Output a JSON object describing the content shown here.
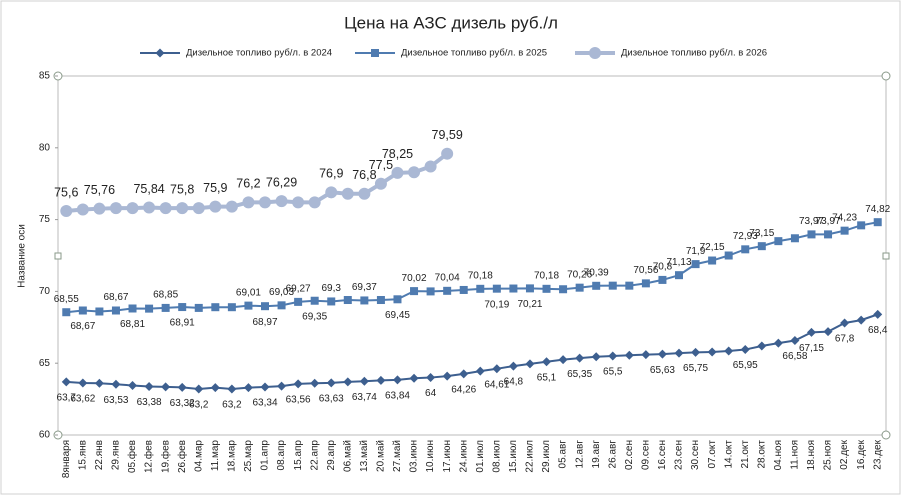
{
  "chart_data": {
    "type": "line",
    "title": "Цена на АЗС  дизель руб./л",
    "ylabel": "Название оси",
    "categories": [
      "8января",
      "15.янв",
      "22.янв",
      "29.янв",
      "05.фев",
      "12.фев",
      "19.фев",
      "26.фев",
      "04.мар",
      "11.мар",
      "18.мар",
      "25.мар",
      "01.апр",
      "08.апр",
      "15.апр",
      "22.апр",
      "29.апр",
      "06.май",
      "13.май",
      "20.май",
      "27.май",
      "03.июн",
      "10.июн",
      "17.июн",
      "24.июн",
      "01.июл",
      "08.июл",
      "15.июл",
      "22.июл",
      "29.июл",
      "05.авг",
      "12.авг",
      "19.авг",
      "26.авг",
      "02.сен",
      "09.сен",
      "16.сен",
      "23.сен",
      "30.сен",
      "07.окт",
      "14.окт",
      "21.окт",
      "28.окт",
      "04.ноя",
      "11.ноя",
      "18.ноя",
      "25.ноя",
      "02.дек",
      "16.дек",
      "23.дек"
    ],
    "ylim": [
      60,
      85
    ],
    "yticks": [
      60,
      65,
      70,
      75,
      80,
      85
    ],
    "grid": false,
    "legend": "top",
    "series": [
      {
        "name": "Дизельное топливо руб/л. в 2024",
        "color": "#3d5f8f",
        "marker": "diamond",
        "values": [
          63.7,
          63.62,
          63.6,
          63.53,
          63.45,
          63.38,
          63.35,
          63.32,
          63.2,
          63.3,
          63.2,
          63.3,
          63.34,
          63.4,
          63.56,
          63.6,
          63.63,
          63.7,
          63.74,
          63.8,
          63.84,
          63.95,
          64,
          64.1,
          64.26,
          64.45,
          64.61,
          64.8,
          64.95,
          65.1,
          65.25,
          65.35,
          65.45,
          65.5,
          65.55,
          65.6,
          65.63,
          65.7,
          65.75,
          65.78,
          65.85,
          65.95,
          66.2,
          66.4,
          66.58,
          67.15,
          67.2,
          67.8,
          68.0,
          68.4
        ],
        "value_labels": [
          "63,7",
          "63,62",
          null,
          "63,53",
          null,
          "63,38",
          null,
          "63,32",
          "63,2",
          null,
          "63,2",
          null,
          "63,34",
          null,
          "63,56",
          null,
          "63,63",
          null,
          "63,74",
          null,
          "63,84",
          null,
          "64",
          null,
          "64,26",
          null,
          "64,61",
          "64,8",
          null,
          "65,1",
          null,
          "65,35",
          null,
          "65,5",
          null,
          null,
          "65,63",
          null,
          "65,75",
          null,
          null,
          "65,95",
          null,
          null,
          "66,58",
          "67,15",
          null,
          "67,8",
          null,
          "68,4"
        ]
      },
      {
        "name": "Дизельное топливо руб/л.  в 2025",
        "color": "#4f7bb0",
        "marker": "square",
        "values": [
          68.55,
          68.67,
          68.6,
          68.67,
          68.81,
          68.8,
          68.85,
          68.91,
          68.85,
          68.9,
          68.9,
          69.01,
          68.97,
          69.03,
          69.27,
          69.35,
          69.3,
          69.4,
          69.37,
          69.4,
          69.45,
          70.02,
          70,
          70.04,
          70.1,
          70.18,
          70.19,
          70.2,
          70.21,
          70.18,
          70.15,
          70.26,
          70.39,
          70.4,
          70.4,
          70.56,
          70.8,
          71.13,
          71.9,
          72.15,
          72.5,
          72.93,
          73.15,
          73.5,
          73.7,
          73.97,
          73.97,
          74.23,
          74.6,
          74.82
        ],
        "value_labels": [
          "68,55",
          "68,67",
          null,
          "68,67",
          "68,81",
          null,
          "68,85",
          "68,91",
          null,
          null,
          null,
          "69,01",
          "68,97",
          "69,03",
          "69,27",
          "69,35",
          "69,3",
          null,
          "69,37",
          null,
          "69,45",
          "70,02",
          null,
          "70,04",
          null,
          "70,18",
          "70,19",
          null,
          "70,21",
          "70,18",
          null,
          "70,26",
          "70,39",
          null,
          null,
          "70,56",
          "70,8",
          "71,13",
          "71,9",
          "72,15",
          null,
          "72,93",
          "73,15",
          null,
          null,
          "73,97",
          "73,97",
          "74,23",
          null,
          "74,82"
        ]
      },
      {
        "name": "Дизельное топливо руб/л.  в 2026",
        "color": "#aab8d4",
        "marker": "circle",
        "values": [
          75.6,
          75.7,
          75.76,
          75.8,
          75.8,
          75.84,
          75.8,
          75.8,
          75.8,
          75.9,
          75.9,
          76.2,
          76.2,
          76.29,
          76.2,
          76.2,
          76.9,
          76.8,
          76.8,
          77.5,
          78.25,
          78.3,
          78.7,
          79.59,
          null,
          null,
          null,
          null,
          null,
          null,
          null,
          null,
          null,
          null,
          null,
          null,
          null,
          null,
          null,
          null,
          null,
          null,
          null,
          null,
          null,
          null,
          null,
          null,
          null,
          null
        ],
        "value_labels": [
          "75,6",
          null,
          "75,76",
          null,
          null,
          "75,84",
          null,
          "75,8",
          null,
          "75,9",
          null,
          "76,2",
          null,
          "76,29",
          null,
          null,
          "76,9",
          null,
          "76,8",
          "77,5",
          "78,25",
          null,
          null,
          "79,59",
          null,
          null,
          null,
          null,
          null,
          null,
          null,
          null,
          null,
          null,
          null,
          null,
          null,
          null,
          null,
          null,
          null,
          null,
          null,
          null,
          null,
          null,
          null,
          null,
          null,
          null
        ]
      }
    ]
  }
}
